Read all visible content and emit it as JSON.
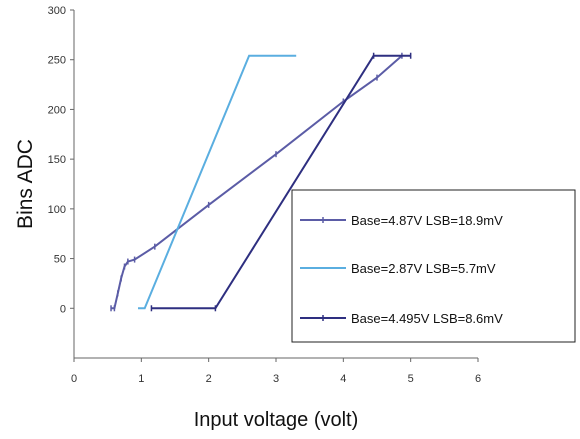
{
  "chart_data": {
    "type": "line",
    "xlabel": "Input voltage (volt)",
    "ylabel": "Bins ADC",
    "xlim": [
      0,
      6
    ],
    "ylim": [
      -50,
      300
    ],
    "x_ticks": [
      0,
      1,
      2,
      3,
      4,
      5,
      6
    ],
    "y_ticks": [
      0,
      50,
      100,
      150,
      200,
      250,
      300
    ],
    "x_tick_labels": [
      "0",
      "1",
      "2",
      "3",
      "4",
      "5",
      "6"
    ],
    "y_tick_labels": [
      "0",
      "50",
      "100",
      "150",
      "200",
      "250",
      "300"
    ],
    "grid": false,
    "legend_position": "right",
    "series": [
      {
        "name": "Base=4.87V LSB=18.9mV",
        "color": "#5b5ca6",
        "marker": "tick",
        "points": [
          [
            0.55,
            0
          ],
          [
            0.6,
            0
          ],
          [
            0.65,
            15
          ],
          [
            0.7,
            30
          ],
          [
            0.75,
            42
          ],
          [
            0.8,
            47
          ],
          [
            0.9,
            49
          ],
          [
            1.2,
            62
          ],
          [
            2.0,
            104
          ],
          [
            3.0,
            155
          ],
          [
            4.0,
            208
          ],
          [
            4.5,
            232
          ],
          [
            4.87,
            254
          ]
        ]
      },
      {
        "name": "Base=2.87V LSB=5.7mV",
        "color": "#5aaee0",
        "marker": "none",
        "points": [
          [
            0.95,
            0
          ],
          [
            1.05,
            0
          ],
          [
            2.6,
            254
          ],
          [
            3.3,
            254
          ]
        ]
      },
      {
        "name": "Base=4.495V LSB=8.6mV",
        "color": "#2e2f80",
        "marker": "tick",
        "points": [
          [
            1.15,
            0
          ],
          [
            2.1,
            0
          ],
          [
            4.45,
            254
          ],
          [
            5.0,
            254
          ]
        ]
      }
    ]
  }
}
